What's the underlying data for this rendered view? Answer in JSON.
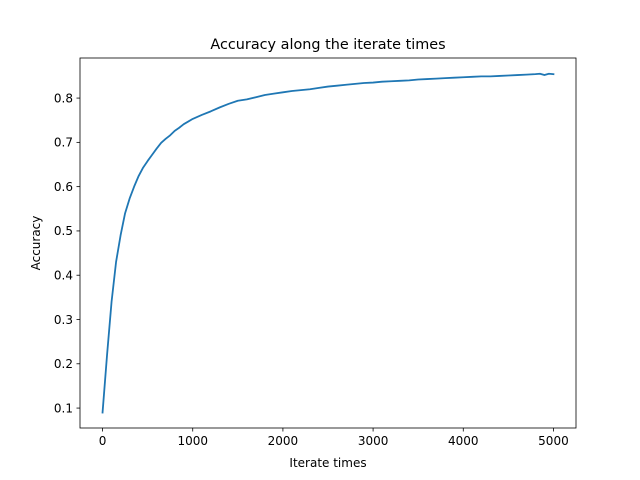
{
  "chart_data": {
    "type": "line",
    "title": "Accuracy along the iterate times",
    "xlabel": "Iterate times",
    "ylabel": "Accuracy",
    "xlim": [
      -250,
      5250
    ],
    "ylim": [
      0.055,
      0.8905
    ],
    "x_ticks": [
      0,
      1000,
      2000,
      3000,
      4000,
      5000
    ],
    "y_ticks": [
      0.1,
      0.2,
      0.3,
      0.4,
      0.5,
      0.6,
      0.7,
      0.8
    ],
    "x_tick_labels": [
      "0",
      "1000",
      "2000",
      "3000",
      "4000",
      "5000"
    ],
    "y_tick_labels": [
      "0.1",
      "0.2",
      "0.3",
      "0.4",
      "0.5",
      "0.6",
      "0.7",
      "0.8"
    ],
    "grid": false,
    "series": [
      {
        "color": "#1f77b4",
        "x": [
          0,
          50,
          100,
          150,
          200,
          250,
          300,
          350,
          400,
          450,
          500,
          550,
          600,
          650,
          700,
          750,
          800,
          850,
          900,
          950,
          1000,
          1100,
          1200,
          1300,
          1400,
          1500,
          1600,
          1700,
          1800,
          1900,
          2000,
          2100,
          2200,
          2300,
          2400,
          2500,
          2600,
          2700,
          2800,
          2900,
          3000,
          3100,
          3200,
          3300,
          3400,
          3500,
          3600,
          3700,
          3800,
          3900,
          4000,
          4100,
          4200,
          4300,
          4400,
          4500,
          4600,
          4700,
          4800,
          4850,
          4900,
          4950,
          5000
        ],
        "y": [
          0.09,
          0.22,
          0.34,
          0.43,
          0.49,
          0.54,
          0.573,
          0.6,
          0.624,
          0.643,
          0.658,
          0.672,
          0.686,
          0.699,
          0.708,
          0.716,
          0.726,
          0.733,
          0.741,
          0.747,
          0.753,
          0.762,
          0.77,
          0.779,
          0.787,
          0.794,
          0.797,
          0.802,
          0.807,
          0.81,
          0.813,
          0.816,
          0.818,
          0.82,
          0.823,
          0.826,
          0.828,
          0.83,
          0.832,
          0.834,
          0.835,
          0.837,
          0.838,
          0.839,
          0.84,
          0.842,
          0.843,
          0.844,
          0.845,
          0.846,
          0.847,
          0.848,
          0.849,
          0.849,
          0.85,
          0.851,
          0.852,
          0.853,
          0.854,
          0.855,
          0.852,
          0.855,
          0.854
        ]
      }
    ]
  }
}
